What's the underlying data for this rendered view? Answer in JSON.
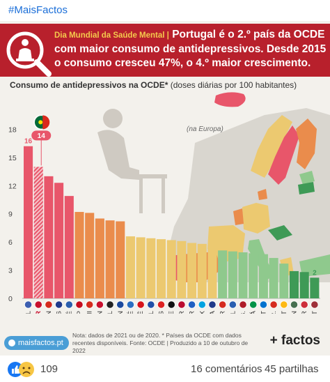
{
  "post": {
    "hashtag": "#MaisFactos",
    "reactions_count": "109",
    "comments_label": "16 comentários",
    "shares_label": "45 partilhas"
  },
  "banner": {
    "pre_label": "Dia Mundial da Saúde Mental |",
    "headline": "Portugal é o 2.º país da OCDE com maior consumo de antidepressivos. Desde 2015 o consumo cresceu 47%, o 4.º maior crescimento."
  },
  "chart_title": {
    "main": "Consumo de antidepressivos na OCDE*",
    "sub": "(doses diárias por 100 habitantes)"
  },
  "map_note": "(na Europa)",
  "footnote": "Nota: dados de 2021 ou de 2020. * Países da OCDE com dados recentes disponíveis. Fonte: OCDE | Produzido a 10 de outubro de 2022",
  "site_badge": "maisfactos.pt",
  "brand": "+ factos",
  "colors": {
    "banner": "#b8202c",
    "red": "#e8566a",
    "orange": "#ea8c4c",
    "yellow": "#ecc970",
    "lightgreen": "#8fc98d",
    "darkgreen": "#3e9a56"
  },
  "chart_data": {
    "type": "bar",
    "title": "Consumo de antidepressivos na OCDE*",
    "subtitle": "(doses diárias por 100 habitantes)",
    "ylim": [
      0,
      19
    ],
    "yticks": [
      0,
      3,
      6,
      9,
      12,
      15,
      18
    ],
    "grid": false,
    "categories": [
      "ISL",
      "POR",
      "CAN",
      "AUS",
      "SUÉ",
      "ESP",
      "CHI",
      "DIN",
      "BÉL",
      "FIN",
      "GRÉ",
      "CHÉ",
      "ESL",
      "ÁUS",
      "ALE",
      "NOR",
      "ISR",
      "LUX",
      "FRA",
      "TUR",
      "ESL",
      "P.B.",
      "ITÁ",
      "EST",
      "C.R.",
      "LIT",
      "HUN",
      "COR",
      "LET"
    ],
    "values": [
      16.2,
      14.0,
      13.0,
      12.3,
      10.9,
      9.2,
      9.1,
      8.5,
      8.3,
      8.2,
      6.6,
      6.5,
      6.4,
      6.3,
      6.2,
      6.1,
      5.9,
      5.8,
      5.7,
      5.1,
      5.0,
      4.9,
      4.8,
      4.7,
      4.3,
      3.7,
      2.9,
      2.8,
      2.2
    ],
    "color_groups": [
      "red",
      "red",
      "red",
      "red",
      "red",
      "orange",
      "orange",
      "orange",
      "orange",
      "orange",
      "yellow",
      "yellow",
      "yellow",
      "yellow",
      "yellow",
      "yellow",
      "yellow",
      "yellow",
      "yellow",
      "lightgreen",
      "lightgreen",
      "lightgreen",
      "lightgreen",
      "lightgreen",
      "lightgreen",
      "lightgreen",
      "darkgreen",
      "darkgreen",
      "darkgreen"
    ],
    "highlight": {
      "category": "POR",
      "label": "14"
    },
    "data_labels": [
      {
        "index": 0,
        "label": "16"
      },
      {
        "index": 28,
        "label": "2"
      }
    ]
  }
}
